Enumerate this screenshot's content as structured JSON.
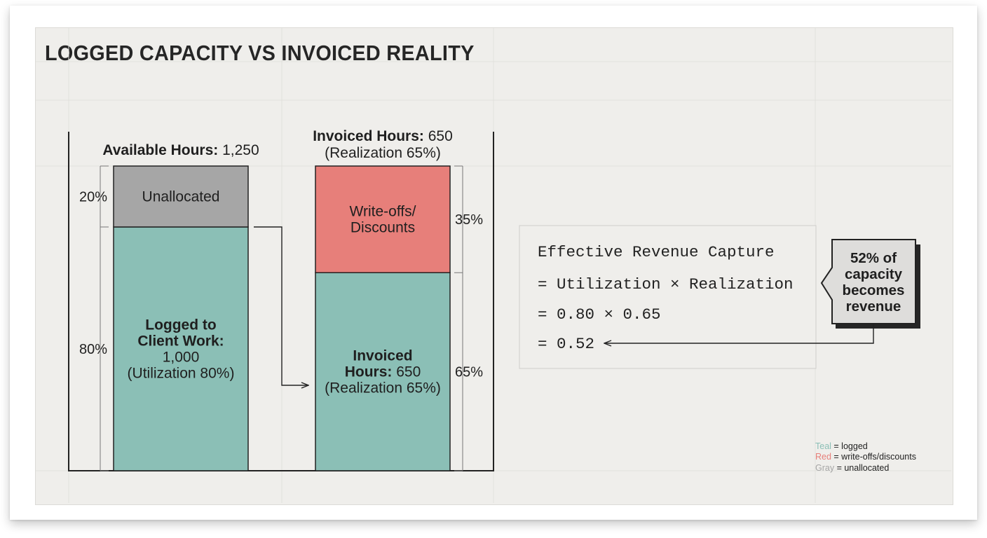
{
  "title": "LOGGED CAPACITY VS INVOICED REALITY",
  "chart_data": {
    "type": "bar",
    "stacked": true,
    "bars": [
      {
        "header_bold": "Available Hours:",
        "header_value": "1,250",
        "total": 1250,
        "segments": [
          {
            "name": "Logged to Client Work",
            "value": 1000,
            "share": 80,
            "color": "#8bbfb6",
            "label_bold": [
              "Logged to",
              "Client Work:"
            ],
            "label_lines": [
              "1,000",
              "(Utilization 80%)"
            ],
            "side_label": "80%"
          },
          {
            "name": "Unallocated",
            "value": 250,
            "share": 20,
            "color": "#a6a6a6",
            "label_bold": [],
            "label_lines": [
              "Unallocated"
            ],
            "side_label": "20%"
          }
        ]
      },
      {
        "header_bold": "Invoiced Hours:",
        "header_value": "650",
        "header_sub": "(Realization 65%)",
        "total": 1000,
        "segments": [
          {
            "name": "Invoiced Hours",
            "value": 650,
            "share": 65,
            "color": "#8bbfb6",
            "label_bold": [
              "Invoiced",
              "Hours:"
            ],
            "label_bold_suffix": " 650",
            "label_lines": [
              "(Realization 65%)"
            ],
            "side_label": "65%"
          },
          {
            "name": "Write-offs/Discounts",
            "value": 350,
            "share": 35,
            "color": "#e77f7a",
            "label_bold": [],
            "label_lines": [
              "Write-offs/",
              "Discounts"
            ],
            "side_label": "35%"
          }
        ]
      }
    ]
  },
  "formula": {
    "lines": [
      "Effective Revenue Capture",
      "= Utilization × Realization",
      "= 0.80 × 0.65",
      "= 0.52"
    ]
  },
  "callout": {
    "lines": [
      "52% of",
      "capacity",
      "becomes",
      "revenue"
    ]
  },
  "legend": [
    {
      "key": "Teal",
      "desc": " = logged",
      "color": "#8bbfb6"
    },
    {
      "key": "Red",
      "desc": " = write-offs/discounts",
      "color": "#e77f7a"
    },
    {
      "key": "Gray",
      "desc": " = unallocated",
      "color": "#a6a6a6"
    }
  ]
}
